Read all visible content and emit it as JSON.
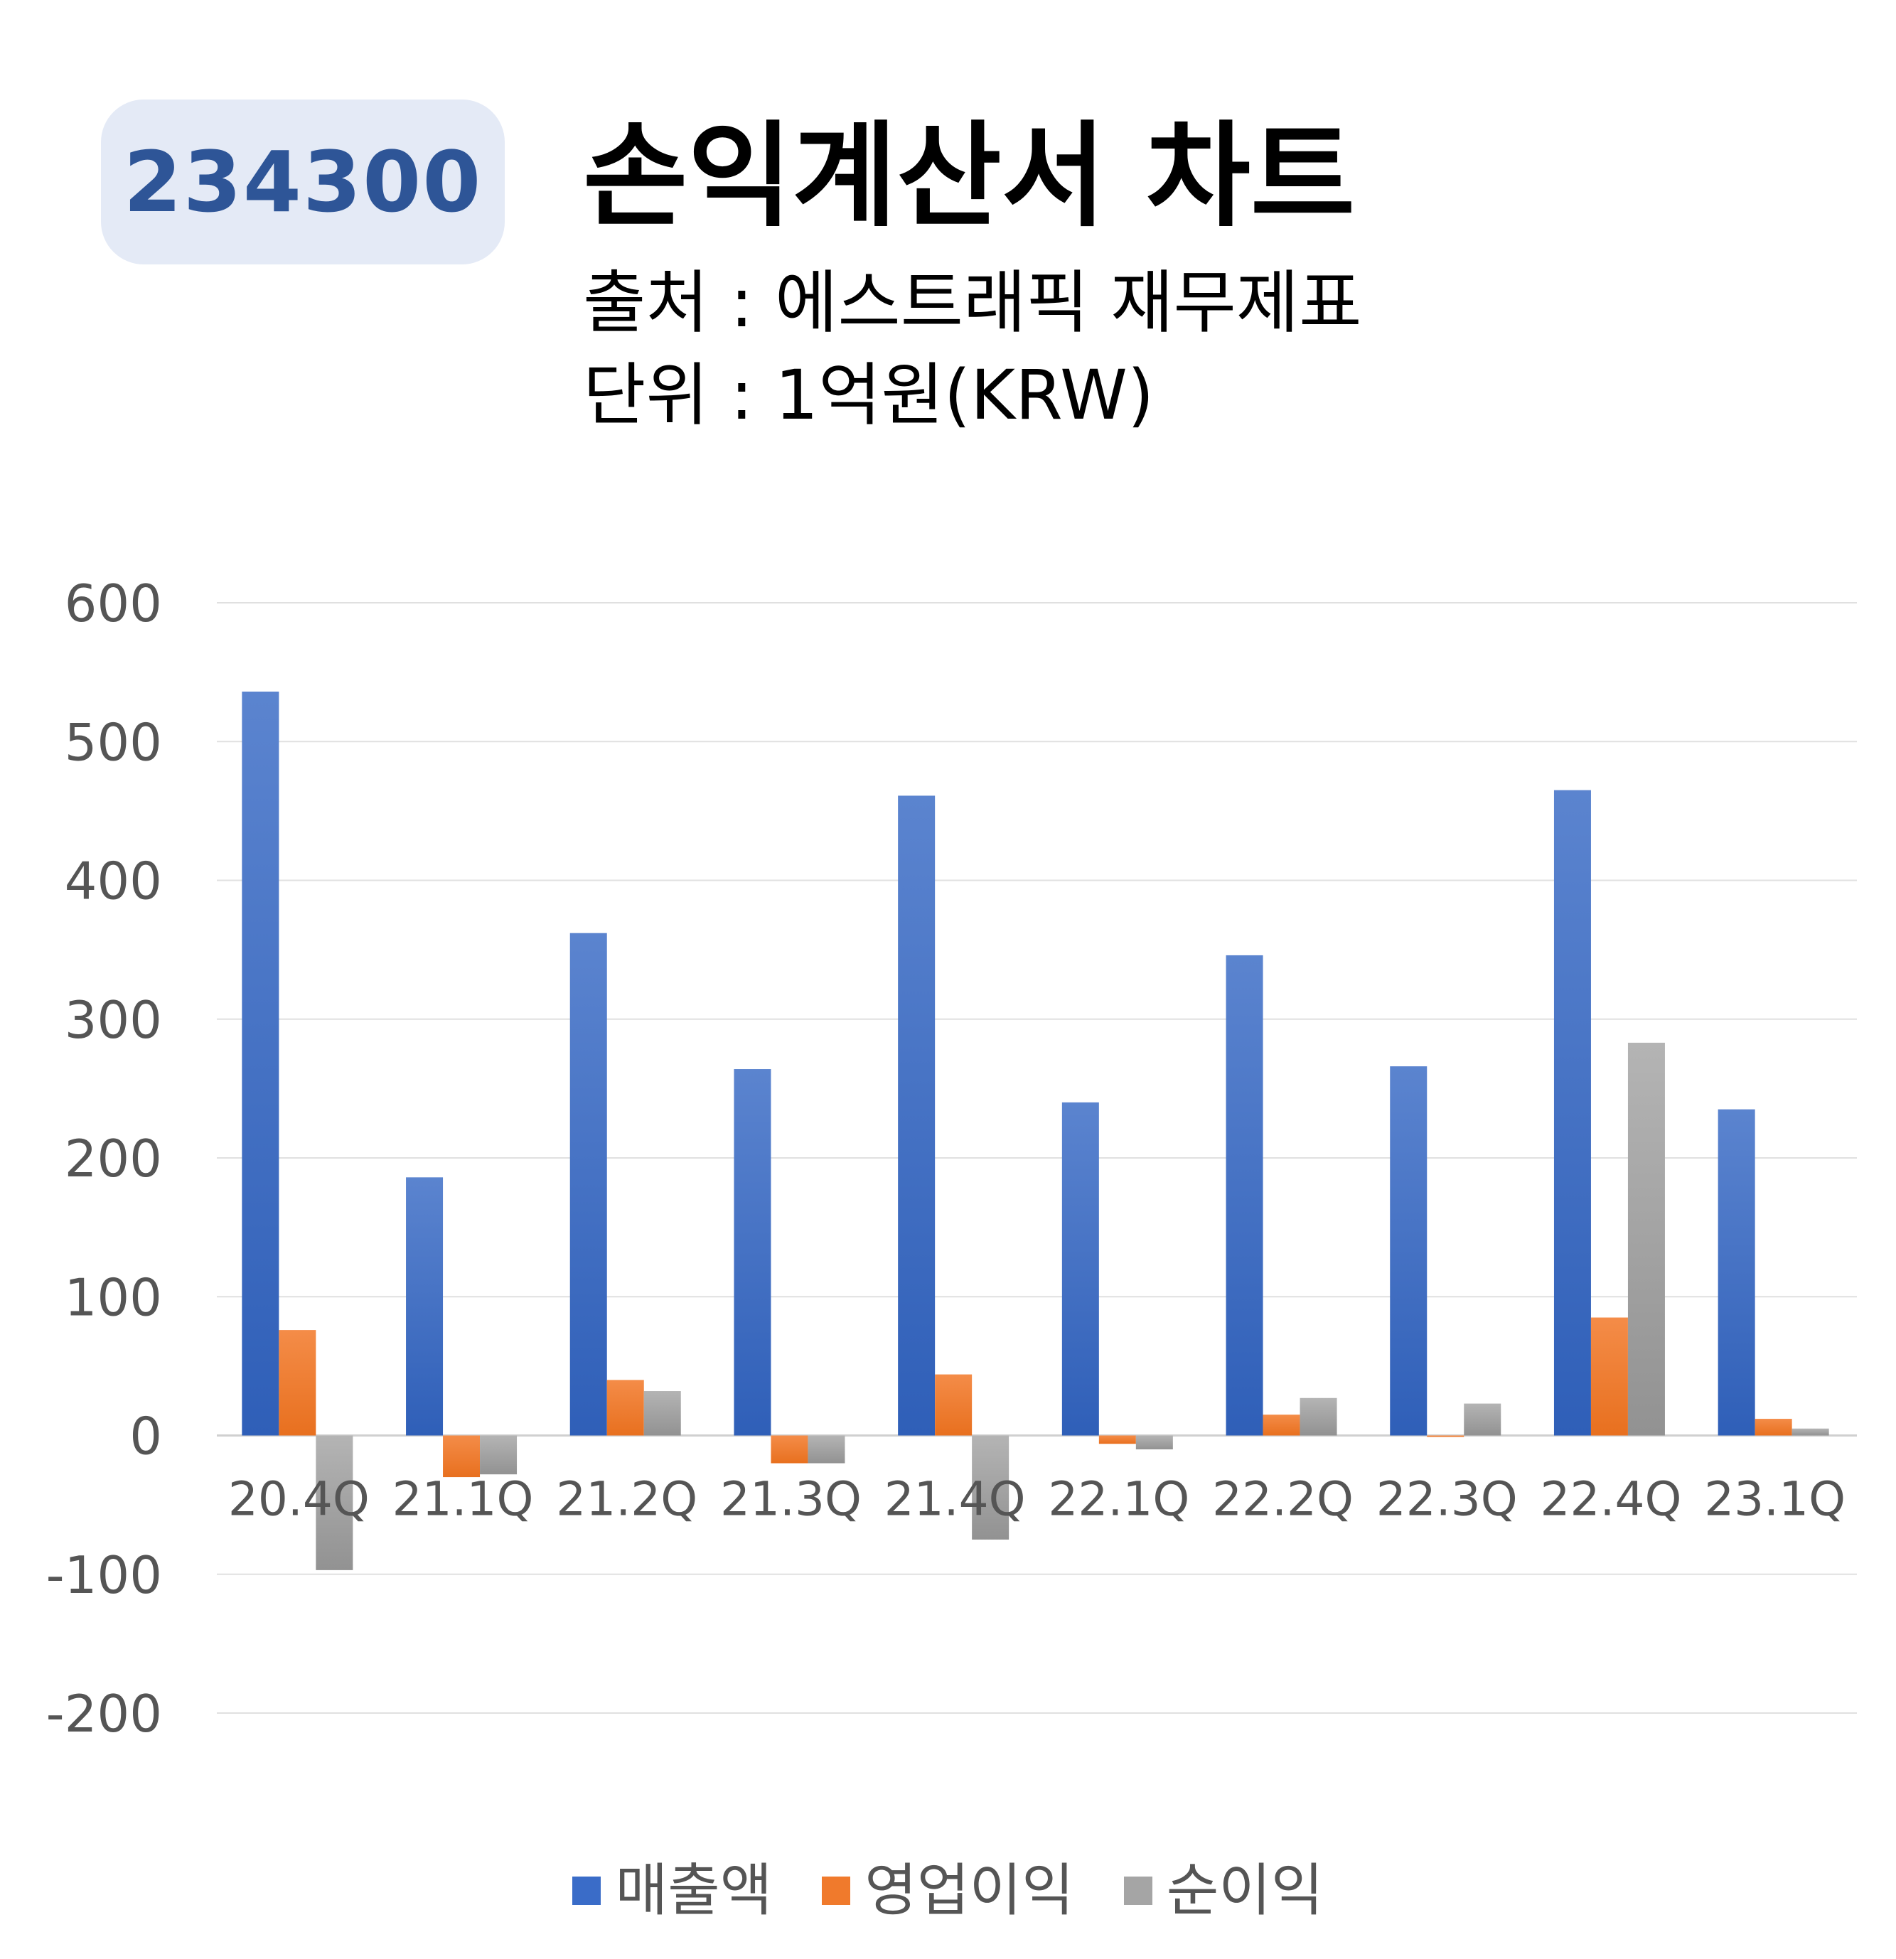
{
  "header": {
    "code": "234300",
    "title": "손익계산서 차트",
    "source": "출처 : 에스트래픽 재무제표",
    "unit": "단위 : 1억원(KRW)"
  },
  "colors": {
    "revenue": "#3a6cc8",
    "operating_profit": "#f07a2c",
    "net_profit": "#a5a5a5",
    "badge_bg": "#e4eaf6",
    "badge_text": "#2e5597"
  },
  "chart_data": {
    "type": "bar",
    "title": "",
    "xlabel": "",
    "ylabel": "",
    "ylim": [
      -200,
      600
    ],
    "yticks": [
      600,
      500,
      400,
      300,
      200,
      100,
      0,
      -100,
      -200
    ],
    "grid": true,
    "legend_position": "bottom",
    "categories": [
      "20.4Q",
      "21.1Q",
      "21.2Q",
      "21.3Q",
      "21.4Q",
      "22.1Q",
      "22.2Q",
      "22.3Q",
      "22.4Q",
      "23.1Q"
    ],
    "series": [
      {
        "name": "매출액",
        "values": [
          536,
          186,
          362,
          264,
          461,
          240,
          346,
          266,
          465,
          235
        ]
      },
      {
        "name": "영업이익",
        "values": [
          76,
          -30,
          40,
          -20,
          44,
          -6,
          15,
          -1,
          85,
          12
        ]
      },
      {
        "name": "순이익",
        "values": [
          -97,
          -28,
          32,
          -20,
          -75,
          -10,
          27,
          23,
          283,
          5
        ]
      }
    ]
  }
}
